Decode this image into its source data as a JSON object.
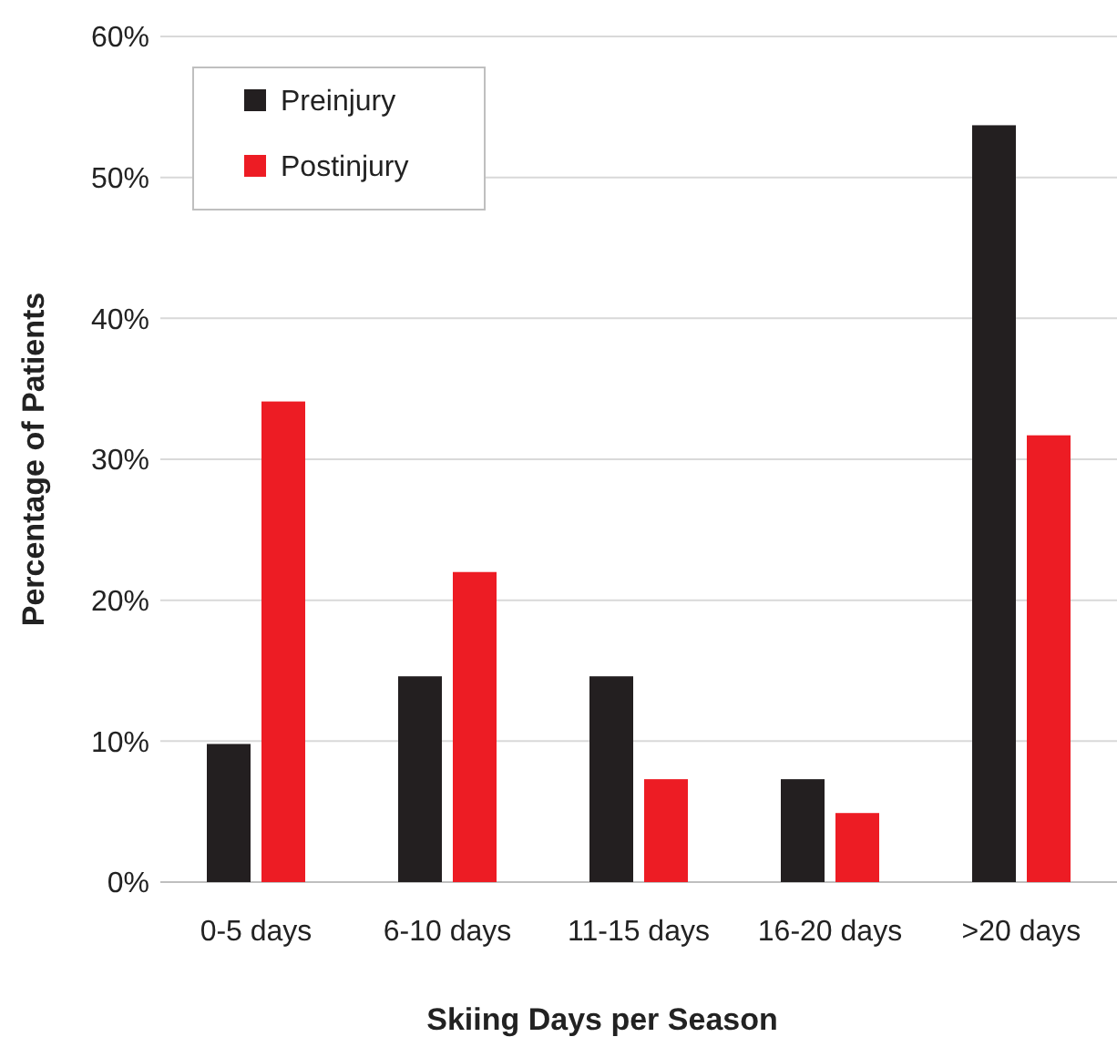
{
  "chart_data": {
    "type": "bar",
    "xlabel": "Skiing Days per Season",
    "ylabel": "Percentage of Patients",
    "categories": [
      "0-5 days",
      "6-10 days",
      "11-15 days",
      "16-20 days",
      ">20 days"
    ],
    "series": [
      {
        "name": "Preinjury",
        "color": "#231f20",
        "values": [
          9.8,
          14.6,
          14.6,
          7.3,
          53.7
        ]
      },
      {
        "name": "Postinjury",
        "color": "#ed1c24",
        "values": [
          34.1,
          22.0,
          7.3,
          4.9,
          31.7
        ]
      }
    ],
    "ylim": [
      0,
      60
    ],
    "yticks": [
      {
        "value": 0,
        "label": "0%"
      },
      {
        "value": 10,
        "label": "10%"
      },
      {
        "value": 20,
        "label": "20%"
      },
      {
        "value": 30,
        "label": "30%"
      },
      {
        "value": 40,
        "label": "40%"
      },
      {
        "value": 50,
        "label": "50%"
      },
      {
        "value": 60,
        "label": "60%"
      }
    ],
    "grid": "y",
    "legend": "top left"
  }
}
